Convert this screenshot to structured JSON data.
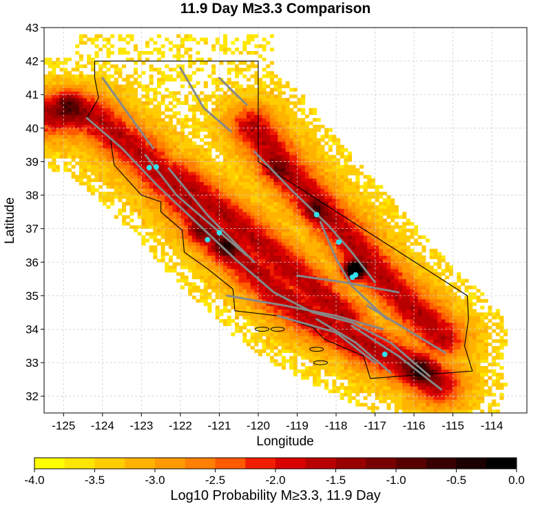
{
  "title": "11.9 Day M≥3.3 Comparison",
  "xlabel": "Longitude",
  "ylabel": "Latitude",
  "x_range": [
    -125.5,
    -113.1
  ],
  "y_range": [
    31.5,
    43.0
  ],
  "x_ticks": [
    "-125",
    "-124",
    "-123",
    "-122",
    "-121",
    "-120",
    "-119",
    "-118",
    "-117",
    "-116",
    "-115",
    "-114"
  ],
  "y_ticks": [
    "32",
    "33",
    "34",
    "35",
    "36",
    "37",
    "38",
    "39",
    "40",
    "41",
    "42",
    "43"
  ],
  "colorbar": {
    "label": "Log10 Probability M≥3.3, 11.9 Day",
    "ticks": [
      "-4.0",
      "-3.5",
      "-3.0",
      "-2.5",
      "-2.0",
      "-1.5",
      "-1.0",
      "-0.5",
      "0.0"
    ],
    "range": [
      -4.0,
      0.0
    ],
    "colors": [
      "#ffff00",
      "#ffe600",
      "#ffcc00",
      "#ffb300",
      "#ff9a00",
      "#ff7f00",
      "#ff5a00",
      "#f01e00",
      "#d80000",
      "#b80000",
      "#980000",
      "#780000",
      "#580000",
      "#380000",
      "#1a0000",
      "#000000"
    ]
  },
  "colors": {
    "fault": "#888888",
    "marker": "#33e0ee",
    "border": "#000000",
    "grid": "#cccccc"
  },
  "chart_data": {
    "type": "heatmap",
    "events": [
      {
        "lon": -122.8,
        "lat": 38.82
      },
      {
        "lon": -122.62,
        "lat": 38.84
      },
      {
        "lon": -121.0,
        "lat": 36.88
      },
      {
        "lon": -121.3,
        "lat": 36.67
      },
      {
        "lon": -118.5,
        "lat": 37.42
      },
      {
        "lon": -117.93,
        "lat": 36.6
      },
      {
        "lon": -117.5,
        "lat": 35.62
      },
      {
        "lon": -117.58,
        "lat": 35.55
      },
      {
        "lon": -116.75,
        "lat": 33.25
      }
    ]
  }
}
